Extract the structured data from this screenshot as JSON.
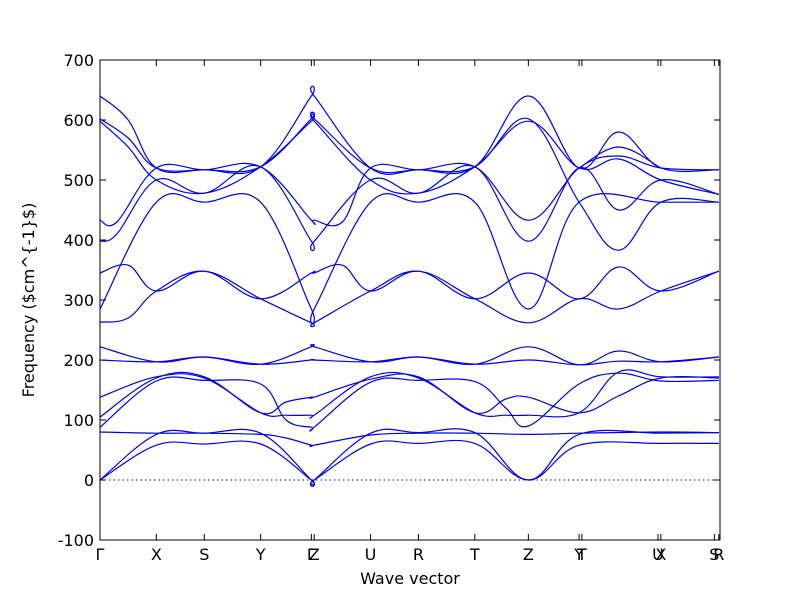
{
  "chart_data": {
    "type": "line",
    "xlabel": "Wave vector",
    "ylabel": "Frequency ($cm^{-1}$)",
    "ylim": [
      -100,
      700
    ],
    "yticks": [
      -100,
      0,
      100,
      200,
      300,
      400,
      500,
      600,
      700
    ],
    "grid": false,
    "xlim": [
      0,
      11
    ],
    "high_symmetry_points": [
      {
        "label": "Γ",
        "x": 0
      },
      {
        "label": "X",
        "x": 1
      },
      {
        "label": "S",
        "x": 1.85
      },
      {
        "label": "Y",
        "x": 2.85
      },
      {
        "label": "Γ",
        "x": 3.75
      },
      {
        "label": "Z",
        "x": 3.8
      },
      {
        "label": "U",
        "x": 4.8
      },
      {
        "label": "R",
        "x": 5.65
      },
      {
        "label": "T",
        "x": 6.65
      },
      {
        "label": "Z",
        "x": 7.6
      },
      {
        "label": "Y",
        "x": 8.5
      },
      {
        "label": "T",
        "x": 8.55
      },
      {
        "label": "U",
        "x": 9.9
      },
      {
        "label": "X",
        "x": 9.95
      },
      {
        "label": "S",
        "x": 10.9
      },
      {
        "label": "R",
        "x": 10.98
      }
    ],
    "series": [
      {
        "x": [
          0,
          1,
          1.85,
          2.85,
          3.75,
          3.8,
          4.8,
          5.65,
          6.65,
          7.6,
          8.5,
          9.95,
          10.98
        ],
        "values": [
          0,
          58,
          60,
          60,
          0,
          0,
          60,
          61,
          61,
          0,
          58,
          61,
          61
        ]
      },
      {
        "x": [
          0,
          1,
          1.85,
          2.85,
          3.75,
          3.8,
          4.8,
          5.65,
          6.65,
          7.6,
          8.5,
          9.95,
          10.98
        ],
        "values": [
          0,
          76,
          78,
          78,
          0,
          0,
          78,
          79,
          79,
          0,
          76,
          78,
          79
        ]
      },
      {
        "x": [
          0,
          1,
          1.85,
          2.85,
          3.3,
          3.75,
          3.8,
          4.8,
          5.65,
          6.65,
          7.6,
          8.5,
          9.95,
          10.98
        ],
        "values": [
          80,
          78,
          78,
          76,
          70,
          58,
          58,
          75,
          78,
          78,
          76,
          78,
          80,
          79
        ]
      },
      {
        "x": [
          0,
          1,
          1.85,
          2.85,
          3.3,
          3.75,
          3.8,
          4.8,
          5.65,
          6.65,
          7.2,
          7.6,
          8.5,
          9.2,
          9.95,
          10.98
        ],
        "values": [
          88,
          165,
          166,
          160,
          100,
          88,
          88,
          163,
          166,
          164,
          120,
          90,
          160,
          178,
          165,
          166
        ]
      },
      {
        "x": [
          0,
          1,
          1.85,
          2.85,
          3.3,
          3.75,
          3.8,
          4.8,
          5.65,
          6.65,
          7.2,
          7.6,
          8.5,
          9.2,
          9.95,
          10.98
        ],
        "values": [
          105,
          170,
          172,
          112,
          130,
          138,
          138,
          168,
          172,
          112,
          135,
          138,
          112,
          140,
          170,
          170
        ]
      },
      {
        "x": [
          0,
          1,
          1.85,
          2.85,
          3.3,
          3.75,
          3.8,
          4.8,
          5.65,
          6.65,
          7.2,
          7.6,
          8.5,
          9.2,
          9.95,
          10.98
        ],
        "values": [
          138,
          172,
          170,
          112,
          108,
          108,
          108,
          172,
          170,
          112,
          108,
          108,
          112,
          180,
          172,
          172
        ]
      },
      {
        "x": [
          0,
          1,
          1.85,
          2.85,
          3.75,
          3.8,
          4.8,
          5.65,
          6.65,
          7.6,
          8.5,
          9.2,
          9.95,
          10.98
        ],
        "values": [
          200,
          197,
          205,
          193,
          200,
          200,
          197,
          205,
          193,
          200,
          192,
          198,
          197,
          205
        ]
      },
      {
        "x": [
          0,
          1,
          1.85,
          2.85,
          3.75,
          3.8,
          4.8,
          5.65,
          6.65,
          7.6,
          8.5,
          9.2,
          9.95,
          10.98
        ],
        "values": [
          222,
          197,
          205,
          193,
          222,
          222,
          197,
          205,
          193,
          222,
          192,
          215,
          197,
          205
        ]
      },
      {
        "x": [
          0,
          0.5,
          1,
          1.85,
          2.85,
          3.75,
          3.8,
          4.8,
          5.65,
          6.65,
          7.6,
          8.5,
          9.2,
          9.95,
          10.98
        ],
        "values": [
          263,
          270,
          315,
          348,
          302,
          262,
          262,
          315,
          348,
          302,
          262,
          302,
          285,
          315,
          348
        ]
      },
      {
        "x": [
          0,
          0.5,
          1,
          1.85,
          2.85,
          3.75,
          3.8,
          4.3,
          4.8,
          5.65,
          6.65,
          7.6,
          8.5,
          9.2,
          9.95,
          10.98
        ],
        "values": [
          345,
          358,
          315,
          348,
          302,
          345,
          345,
          358,
          315,
          348,
          302,
          345,
          302,
          355,
          315,
          348
        ]
      },
      {
        "x": [
          0,
          1,
          1.85,
          2.85,
          3.75,
          3.8,
          4.8,
          5.65,
          6.65,
          7.6,
          8.5,
          9.95,
          10.98
        ],
        "values": [
          285,
          463,
          463,
          463,
          285,
          285,
          463,
          463,
          463,
          285,
          463,
          463,
          463
        ]
      },
      {
        "x": [
          0,
          0.3,
          1,
          1.85,
          2.85,
          3.75,
          3.8,
          4.8,
          5.65,
          6.65,
          7.6,
          8.5,
          9.2,
          9.95,
          10.98
        ],
        "values": [
          398,
          410,
          500,
          478,
          522,
          398,
          398,
          500,
          478,
          522,
          398,
          520,
          450,
          500,
          476
        ]
      },
      {
        "x": [
          0,
          0.3,
          1,
          1.85,
          2.85,
          3.75,
          3.8,
          4.3,
          4.8,
          5.65,
          6.65,
          7.6,
          8.5,
          9.2,
          9.95,
          10.98
        ],
        "values": [
          433,
          430,
          520,
          517,
          522,
          433,
          433,
          430,
          520,
          517,
          522,
          433,
          520,
          540,
          520,
          517
        ]
      },
      {
        "x": [
          0,
          0.5,
          1,
          1.85,
          2.85,
          3.75,
          3.8,
          4.8,
          5.65,
          6.65,
          7.6,
          8.5,
          9.2,
          9.95,
          10.98
        ],
        "values": [
          598,
          555,
          500,
          478,
          522,
          598,
          598,
          500,
          478,
          522,
          598,
          520,
          535,
          500,
          476
        ]
      },
      {
        "x": [
          0,
          0.5,
          1,
          1.85,
          2.85,
          3.75,
          3.8,
          4.8,
          5.65,
          6.65,
          7.6,
          8.5,
          9.2,
          9.95,
          10.98
        ],
        "values": [
          602,
          570,
          520,
          517,
          522,
          602,
          602,
          520,
          517,
          522,
          602,
          463,
          383,
          463,
          463
        ]
      },
      {
        "x": [
          0,
          0.5,
          1,
          1.85,
          2.85,
          3.75,
          3.8,
          4.8,
          5.65,
          6.65,
          7.6,
          8.5,
          9.2,
          9.95,
          10.98
        ],
        "values": [
          640,
          600,
          520,
          517,
          522,
          640,
          640,
          520,
          517,
          522,
          640,
          520,
          580,
          520,
          517
        ]
      },
      {
        "x": [
          8.5,
          9.2,
          9.95
        ],
        "values": [
          520,
          555,
          520
        ]
      }
    ]
  }
}
